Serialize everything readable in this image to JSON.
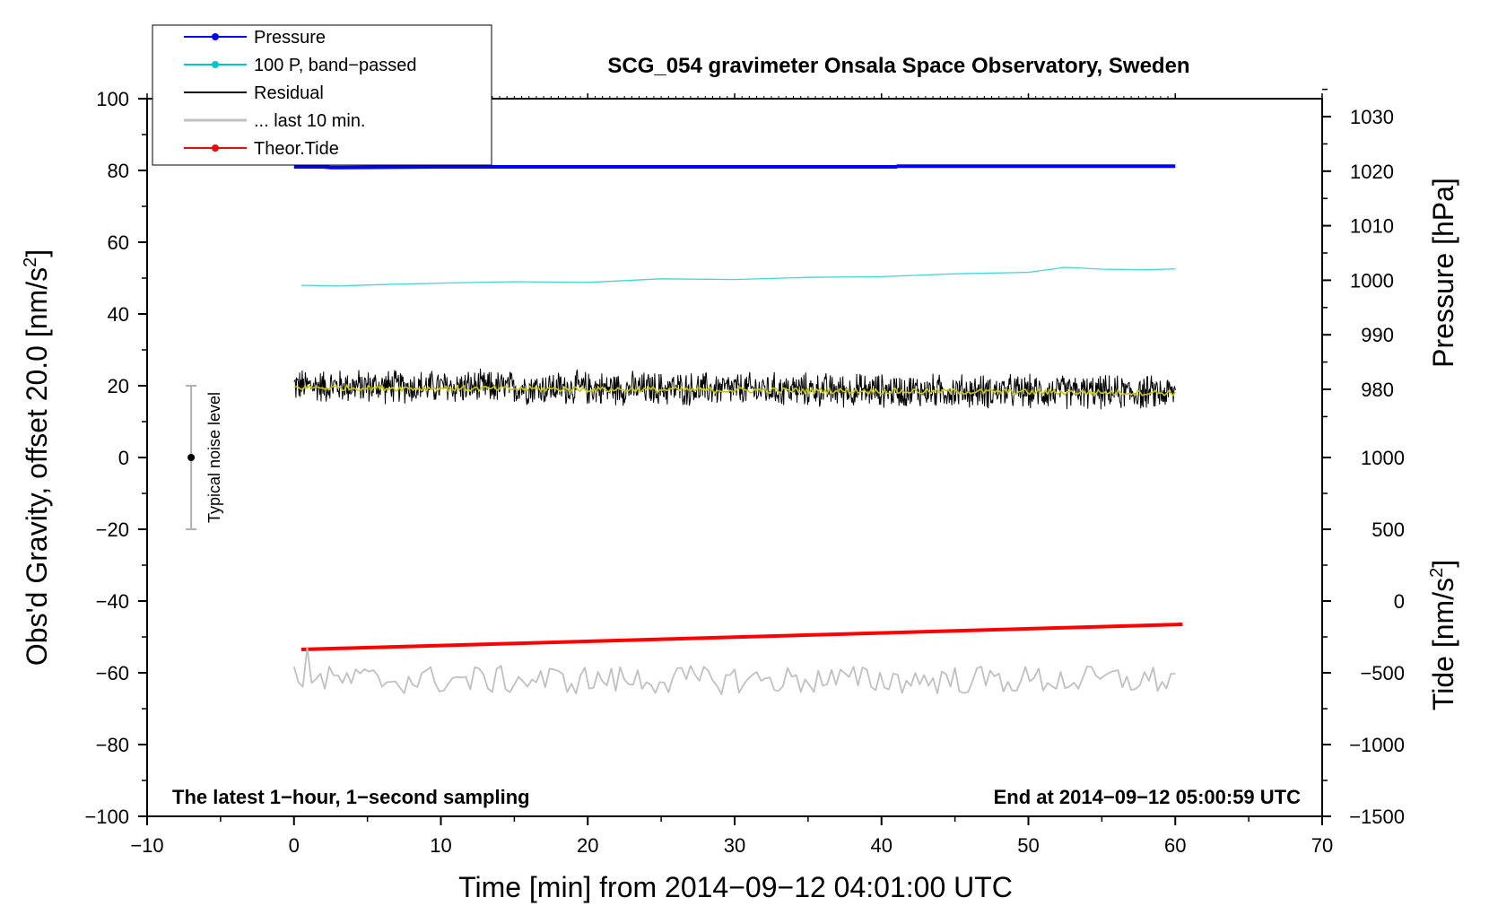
{
  "chart_data": {
    "type": "line",
    "title": "SCG_054 gravimeter Onsala Space Observatory, Sweden",
    "xlabel": "Time [min] from 2014−09−12 04:01:00 UTC",
    "ylabel_main": "Obs'd Gravity, offset 20.0 [nm/s",
    "ylabel_main_sup": "2",
    "ylabel_main_end": "]",
    "ylabel_pressure": "Pressure [hPa]",
    "ylabel_tide": "Tide [nm/s",
    "ylabel_tide_sup": "2",
    "ylabel_tide_end": "]",
    "xlim": [
      -10,
      70
    ],
    "ylim": [
      -100,
      100
    ],
    "x_ticks": [
      -10,
      0,
      10,
      20,
      30,
      40,
      50,
      60,
      70
    ],
    "x_tick_labels": [
      "−10",
      "0",
      "10",
      "20",
      "30",
      "40",
      "50",
      "60",
      "70"
    ],
    "y_ticks": [
      -100,
      -80,
      -60,
      -40,
      -20,
      0,
      20,
      40,
      60,
      80,
      100
    ],
    "y_tick_labels": [
      "−100",
      "−80",
      "−60",
      "−40",
      "−20",
      "0",
      "20",
      "40",
      "60",
      "80",
      "100"
    ],
    "pressure_axis": {
      "ticks": [
        980,
        990,
        1000,
        1010,
        1020,
        1030
      ],
      "tick_labels": [
        "980",
        "990",
        "1000",
        "1010",
        "1020",
        "1030"
      ],
      "map_main": [
        [
          980,
          19
        ],
        [
          1030,
          95
        ]
      ]
    },
    "tide_axis": {
      "ticks": [
        -1500,
        -1000,
        -500,
        0,
        500,
        1000
      ],
      "tick_labels": [
        "−1500",
        "−1000",
        "−500",
        "0",
        "500",
        "1000"
      ],
      "map_main": [
        [
          -1500,
          -100
        ],
        [
          1000,
          0
        ]
      ]
    },
    "legend": [
      {
        "label": "Pressure",
        "color": "#0000ff",
        "marker": true
      },
      {
        "label": "100 P, band−passed",
        "color": "#00c8c8",
        "marker": true
      },
      {
        "label": "Residual",
        "color": "#000000",
        "marker": false
      },
      {
        "label": "... last 10 min.",
        "color": "#c0c0c0",
        "marker": false
      },
      {
        "label": "Theor.Tide",
        "color": "#ff0000",
        "marker": true
      }
    ],
    "series": [
      {
        "name": "Pressure",
        "color": "#0000ff",
        "x": [
          0,
          2,
          2.5,
          10,
          20,
          30,
          41,
          41.1,
          50,
          60
        ],
        "y": [
          81,
          81,
          80.8,
          81,
          81,
          81,
          81,
          81.2,
          81.2,
          81.2
        ]
      },
      {
        "name": "100 P, band−passed",
        "color": "#40d8d8",
        "x": [
          0.5,
          3,
          6,
          10,
          15,
          20,
          25,
          30,
          35,
          40,
          45,
          50,
          52.5,
          55,
          58,
          60
        ],
        "y": [
          48,
          47.8,
          48.2,
          48.6,
          49,
          48.8,
          49.8,
          49.6,
          50.2,
          50.4,
          51.2,
          51.6,
          53,
          52.5,
          52.3,
          52.6
        ]
      },
      {
        "name": "Residual",
        "color": "#000000",
        "x_start": 0,
        "x_end": 60,
        "y_start": 20,
        "y_end": 18,
        "amplitude": 4.5
      },
      {
        "name": "Residual smoothed",
        "color": "#c8c800",
        "x_start": 0,
        "x_end": 60,
        "y_start": 19.5,
        "y_end": 18,
        "amplitude": 0.8
      },
      {
        "name": "Theor.Tide",
        "color": "#ff0000",
        "x": [
          0.5,
          60.5
        ],
        "y": [
          -53.5,
          -46.5
        ]
      },
      {
        "name": "... last 10 min.",
        "color": "#c0c0c0",
        "x_start": 0,
        "x_end": 60,
        "y_center": -62,
        "amplitude": 4
      }
    ],
    "noise_bar": {
      "x": -7,
      "y_low": -20,
      "y_high": 20,
      "center": 0,
      "label": "Typical noise level"
    },
    "note_left": "The latest 1−hour, 1−second sampling",
    "note_right": "End at 2014−09−12 05:00:59 UTC"
  }
}
